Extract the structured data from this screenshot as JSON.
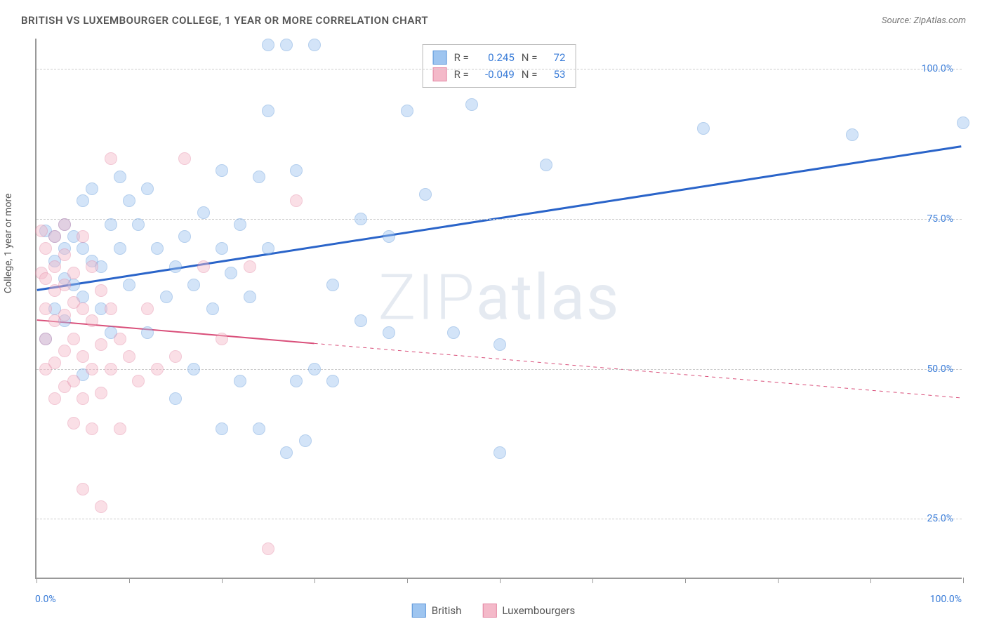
{
  "title": "BRITISH VS LUXEMBOURGER COLLEGE, 1 YEAR OR MORE CORRELATION CHART",
  "source_label": "Source: ",
  "source_name": "ZipAtlas.com",
  "y_axis_label": "College, 1 year or more",
  "watermark": "ZIPatlas",
  "chart": {
    "type": "scatter-correlation",
    "x_min": 0,
    "x_max": 100,
    "y_min": 15,
    "y_max": 105,
    "y_ticks": [
      25,
      50,
      75,
      100
    ],
    "y_tick_labels": [
      "25.0%",
      "50.0%",
      "75.0%",
      "100.0%"
    ],
    "x_ticks": [
      0,
      10,
      20,
      30,
      40,
      50,
      60,
      70,
      80,
      90,
      100
    ],
    "x_axis_min_label": "0.0%",
    "x_axis_max_label": "100.0%",
    "background_color": "#ffffff",
    "grid_color": "#cccccc",
    "axis_color": "#999999",
    "label_color": "#3b7dd8",
    "point_radius": 9,
    "point_opacity": 0.45,
    "series": [
      {
        "name": "British",
        "fill": "#9ec5f0",
        "stroke": "#5a95d9",
        "r_value": "0.245",
        "n_value": "72",
        "trend": {
          "x1": 0,
          "y1": 63,
          "x2": 100,
          "y2": 87,
          "solid_to_x": 100,
          "color": "#2a64c9",
          "width": 3
        },
        "points": [
          [
            1,
            73
          ],
          [
            1,
            55
          ],
          [
            2,
            72
          ],
          [
            2,
            68
          ],
          [
            2,
            60
          ],
          [
            3,
            74
          ],
          [
            3,
            70
          ],
          [
            3,
            65
          ],
          [
            3,
            58
          ],
          [
            4,
            72
          ],
          [
            4,
            64
          ],
          [
            5,
            78
          ],
          [
            5,
            70
          ],
          [
            5,
            62
          ],
          [
            5,
            49
          ],
          [
            6,
            80
          ],
          [
            6,
            68
          ],
          [
            7,
            67
          ],
          [
            7,
            60
          ],
          [
            8,
            74
          ],
          [
            8,
            56
          ],
          [
            9,
            82
          ],
          [
            9,
            70
          ],
          [
            10,
            78
          ],
          [
            10,
            64
          ],
          [
            11,
            74
          ],
          [
            12,
            80
          ],
          [
            12,
            56
          ],
          [
            13,
            70
          ],
          [
            14,
            62
          ],
          [
            15,
            67
          ],
          [
            15,
            45
          ],
          [
            16,
            72
          ],
          [
            17,
            64
          ],
          [
            17,
            50
          ],
          [
            18,
            76
          ],
          [
            19,
            60
          ],
          [
            20,
            83
          ],
          [
            20,
            70
          ],
          [
            20,
            40
          ],
          [
            21,
            66
          ],
          [
            22,
            74
          ],
          [
            22,
            48
          ],
          [
            23,
            62
          ],
          [
            24,
            82
          ],
          [
            24,
            40
          ],
          [
            25,
            70
          ],
          [
            25,
            104
          ],
          [
            25,
            93
          ],
          [
            27,
            36
          ],
          [
            27,
            104
          ],
          [
            28,
            48
          ],
          [
            28,
            83
          ],
          [
            29,
            38
          ],
          [
            30,
            104
          ],
          [
            30,
            50
          ],
          [
            32,
            64
          ],
          [
            32,
            48
          ],
          [
            35,
            58
          ],
          [
            35,
            75
          ],
          [
            38,
            56
          ],
          [
            38,
            72
          ],
          [
            40,
            93
          ],
          [
            42,
            79
          ],
          [
            45,
            56
          ],
          [
            47,
            94
          ],
          [
            50,
            54
          ],
          [
            50,
            36
          ],
          [
            55,
            84
          ],
          [
            72,
            90
          ],
          [
            88,
            89
          ],
          [
            100,
            91
          ]
        ]
      },
      {
        "name": "Luxembourgers",
        "fill": "#f4b9c9",
        "stroke": "#e385a2",
        "r_value": "-0.049",
        "n_value": "53",
        "trend": {
          "x1": 0,
          "y1": 58,
          "x2": 100,
          "y2": 45,
          "solid_to_x": 30,
          "color": "#d94f7a",
          "width": 2
        },
        "points": [
          [
            0.5,
            73
          ],
          [
            0.5,
            66
          ],
          [
            1,
            70
          ],
          [
            1,
            65
          ],
          [
            1,
            60
          ],
          [
            1,
            55
          ],
          [
            1,
            50
          ],
          [
            2,
            72
          ],
          [
            2,
            67
          ],
          [
            2,
            63
          ],
          [
            2,
            58
          ],
          [
            2,
            51
          ],
          [
            2,
            45
          ],
          [
            3,
            74
          ],
          [
            3,
            69
          ],
          [
            3,
            64
          ],
          [
            3,
            59
          ],
          [
            3,
            53
          ],
          [
            3,
            47
          ],
          [
            4,
            66
          ],
          [
            4,
            61
          ],
          [
            4,
            55
          ],
          [
            4,
            48
          ],
          [
            4,
            41
          ],
          [
            5,
            72
          ],
          [
            5,
            60
          ],
          [
            5,
            52
          ],
          [
            5,
            45
          ],
          [
            5,
            30
          ],
          [
            6,
            67
          ],
          [
            6,
            58
          ],
          [
            6,
            50
          ],
          [
            6,
            40
          ],
          [
            7,
            63
          ],
          [
            7,
            54
          ],
          [
            7,
            46
          ],
          [
            7,
            27
          ],
          [
            8,
            85
          ],
          [
            8,
            60
          ],
          [
            8,
            50
          ],
          [
            9,
            55
          ],
          [
            9,
            40
          ],
          [
            10,
            52
          ],
          [
            11,
            48
          ],
          [
            12,
            60
          ],
          [
            13,
            50
          ],
          [
            15,
            52
          ],
          [
            16,
            85
          ],
          [
            18,
            67
          ],
          [
            20,
            55
          ],
          [
            23,
            67
          ],
          [
            25,
            20
          ],
          [
            28,
            78
          ]
        ]
      }
    ]
  },
  "legend_top": {
    "r_label": "R =",
    "n_label": "N ="
  },
  "legend_bottom": [
    {
      "label": "British",
      "fill": "#9ec5f0",
      "stroke": "#5a95d9"
    },
    {
      "label": "Luxembourgers",
      "fill": "#f4b9c9",
      "stroke": "#e385a2"
    }
  ]
}
